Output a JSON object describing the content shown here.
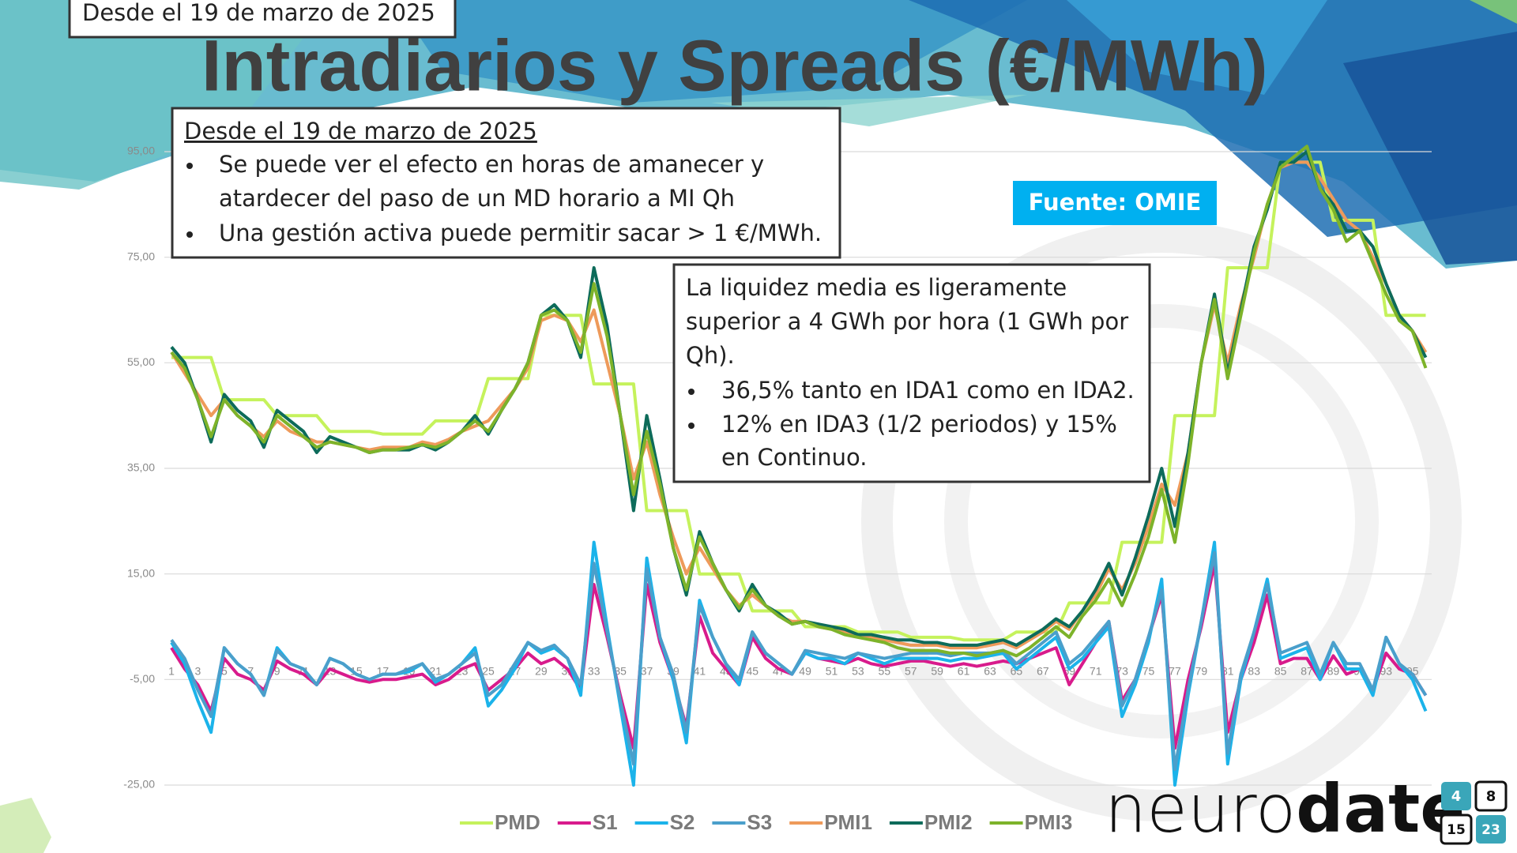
{
  "chart_data": {
    "type": "line",
    "title": "Intradiarios y Spreads (€/MWh)",
    "categories": [
      1,
      null,
      3,
      null,
      5,
      null,
      7,
      null,
      9,
      null,
      11,
      null,
      13,
      null,
      15,
      null,
      17,
      null,
      19,
      null,
      21,
      null,
      23,
      null,
      25,
      null,
      27,
      null,
      29,
      null,
      31,
      null,
      33,
      null,
      35,
      null,
      37,
      null,
      39,
      null,
      41,
      null,
      43,
      null,
      45,
      null,
      47,
      null,
      49,
      null,
      51,
      null,
      53,
      null,
      55,
      null,
      57,
      null,
      59,
      null,
      61,
      null,
      63,
      null,
      65,
      null,
      67,
      null,
      69,
      null,
      71,
      null,
      73,
      null,
      75,
      null,
      77,
      null,
      79,
      null,
      81,
      null,
      83,
      null,
      85,
      null,
      87,
      null,
      89,
      null,
      91,
      null,
      93,
      null,
      95,
      null
    ],
    "ylim": [
      -25,
      95
    ],
    "yticks": [
      {
        "value": -25,
        "label": "-25,00"
      },
      {
        "value": -5,
        "label": "-5,00"
      },
      {
        "value": 15,
        "label": "15,00"
      },
      {
        "value": 35,
        "label": "35,00"
      },
      {
        "value": 55,
        "label": "55,00"
      },
      {
        "value": 75,
        "label": "75,00"
      },
      {
        "value": 95,
        "label": "95,00"
      }
    ],
    "grid": true,
    "legend": "bottom",
    "series": [
      {
        "name": "PMD",
        "color": "#c5f25c",
        "values": [
          56,
          56,
          56,
          56,
          48,
          48,
          48,
          48,
          45,
          45,
          45,
          45,
          42,
          42,
          42,
          42,
          41.5,
          41.5,
          41.5,
          41.5,
          44,
          44,
          44,
          44,
          52,
          52,
          52,
          52,
          64,
          64,
          64,
          64,
          51,
          51,
          51,
          51,
          27,
          27,
          27,
          27,
          15,
          15,
          15,
          15,
          8,
          8,
          8,
          8,
          5,
          5,
          5,
          5,
          4,
          4,
          4,
          4,
          3,
          3,
          3,
          3,
          2.5,
          2.5,
          2.5,
          2.5,
          4,
          4,
          4,
          4,
          9.5,
          9.5,
          9.5,
          9.5,
          21,
          21,
          21,
          21,
          45,
          45,
          45,
          45,
          73,
          73,
          73,
          73,
          93,
          93,
          93,
          93,
          82,
          82,
          82,
          82,
          64,
          64,
          64,
          64
        ]
      },
      {
        "name": "S1",
        "color": "#d81b8c",
        "values": [
          1,
          -3,
          -6,
          -11,
          -1,
          -4,
          -5,
          -7,
          -1.5,
          -3,
          -4,
          -6,
          -3,
          -4,
          -5,
          -5.5,
          -5,
          -5,
          -4.5,
          -4,
          -6,
          -5,
          -3,
          -2,
          -7,
          -5,
          -3,
          0,
          -2,
          -1,
          -3,
          -7,
          13,
          3,
          -8,
          -18,
          13,
          2,
          -5,
          -14,
          7,
          0,
          -3,
          -6,
          3,
          -1,
          -3,
          -4,
          0,
          -1,
          -1.5,
          -2,
          -1,
          -2,
          -2.5,
          -2,
          -1.5,
          -1.5,
          -2,
          -2.5,
          -2,
          -2.5,
          -2,
          -1.5,
          -2,
          -1,
          0,
          1,
          -6,
          -2,
          2,
          6,
          -9,
          -5,
          3,
          11,
          -18,
          -5,
          5,
          17,
          -15,
          -5,
          2,
          11,
          -2,
          -1,
          -1,
          -5,
          -0.5,
          -4,
          -3,
          -7,
          0,
          -3,
          -4,
          -8
        ]
      },
      {
        "name": "S2",
        "color": "#1bb3ea",
        "values": [
          2,
          -2,
          -9,
          -15,
          1,
          -2,
          -4,
          -8,
          1,
          -2,
          -3,
          -6,
          -1,
          -2,
          -4,
          -5,
          -4,
          -4,
          -3.5,
          -2,
          -5.5,
          -4,
          -2,
          1,
          -10,
          -7,
          -3,
          2,
          0,
          1,
          -1,
          -8,
          21,
          5,
          -10,
          -25,
          18,
          3,
          -5,
          -17,
          10,
          3,
          -2,
          -6,
          4,
          0,
          -2,
          -4,
          0,
          -1,
          -1,
          -2,
          0,
          -1,
          -2,
          -1,
          -1,
          -1,
          -1,
          -1.5,
          -1,
          -1,
          -0.5,
          0,
          -3,
          -1,
          1,
          3,
          -3,
          -1,
          2,
          5,
          -12,
          -6,
          2,
          14,
          -25,
          -8,
          6,
          21,
          -21,
          -5,
          4,
          14,
          -1,
          0,
          1,
          -5,
          2,
          -3,
          -3,
          -8,
          3,
          -2,
          -5,
          -11
        ]
      },
      {
        "name": "S3",
        "color": "#4a9fcb",
        "values": [
          2.5,
          -1,
          -7,
          -12,
          1,
          -2,
          -4,
          -8,
          0.5,
          -2,
          -3,
          -6,
          -1,
          -2,
          -4,
          -5,
          -4,
          -4,
          -3,
          -2,
          -5,
          -4,
          -2,
          0,
          -8,
          -6,
          -2,
          2,
          0.5,
          1.5,
          -1,
          -6,
          17,
          4,
          -9,
          -21,
          16,
          3,
          -4,
          -15,
          9,
          3,
          -2,
          -5,
          4,
          0,
          -2,
          -4,
          0.5,
          0,
          -0.5,
          -1,
          0,
          -0.5,
          -1,
          -0.5,
          0,
          0,
          0,
          -0.5,
          0,
          0,
          0,
          0.5,
          -2,
          0,
          2,
          4,
          -2,
          0,
          3,
          6,
          -10,
          -5,
          3,
          12,
          -22,
          -7,
          6,
          19,
          -19,
          -4,
          4,
          13,
          0,
          1,
          2,
          -4,
          2,
          -2,
          -2,
          -7,
          3,
          -2,
          -4,
          -8
        ]
      },
      {
        "name": "PMI1",
        "color": "#ee9a5a",
        "values": [
          57,
          53,
          49,
          45,
          48,
          45,
          43,
          41,
          44,
          42,
          41,
          40,
          40,
          39.5,
          39,
          38.5,
          39,
          39,
          39,
          40,
          39.5,
          40.5,
          42,
          43,
          44,
          47,
          50,
          54,
          63,
          64,
          63,
          59,
          65,
          55,
          45,
          33,
          40,
          30,
          22,
          15,
          20,
          16,
          12,
          9,
          11,
          9,
          7,
          6,
          6,
          5,
          4.5,
          4,
          3.5,
          3,
          2.5,
          2,
          1.5,
          1.5,
          1.5,
          1,
          1,
          1,
          1.5,
          2,
          1,
          2.5,
          4,
          6,
          4.5,
          8,
          11,
          16,
          12,
          17,
          24,
          32,
          28,
          38,
          55,
          66,
          55,
          66,
          75,
          85,
          92,
          93,
          93,
          90,
          86,
          82,
          80,
          75,
          70,
          64,
          61,
          57
        ]
      },
      {
        "name": "PMI2",
        "color": "#0d6b5a",
        "values": [
          58,
          55,
          48,
          40,
          49,
          46,
          44,
          39,
          46,
          44,
          42,
          38,
          41,
          40,
          39,
          38,
          38.5,
          38.5,
          38.5,
          39.5,
          38.5,
          40,
          42,
          45,
          41.5,
          46,
          50,
          55,
          64,
          66,
          63,
          56,
          73,
          62,
          45,
          27,
          45,
          33,
          20,
          11,
          23,
          17,
          12,
          8,
          13,
          9,
          7.5,
          5.5,
          6,
          5.5,
          5,
          4.5,
          3.5,
          3.5,
          3,
          2.5,
          2.5,
          2,
          2,
          1.5,
          1.5,
          1.5,
          2,
          2.5,
          1.5,
          3,
          4.5,
          6.5,
          5,
          8,
          12,
          17,
          11,
          18,
          26,
          35,
          24,
          38,
          55,
          68,
          53,
          65,
          77,
          84,
          93,
          93,
          95,
          88,
          85,
          80,
          80,
          77,
          70,
          64,
          61,
          56
        ]
      },
      {
        "name": "PMI3",
        "color": "#7db32a",
        "values": [
          57,
          54,
          48,
          41,
          48,
          45,
          43,
          40,
          45,
          43,
          41,
          39,
          40,
          39.5,
          39,
          38,
          38.5,
          38.5,
          39,
          39.5,
          39,
          40,
          42,
          44,
          42,
          46,
          50,
          55,
          64,
          65,
          63,
          57,
          70,
          60,
          45,
          30,
          42,
          32,
          20,
          12,
          22,
          17,
          12,
          8.5,
          12,
          9,
          7,
          5.5,
          6,
          5,
          4.5,
          3.5,
          3,
          2.5,
          2,
          1,
          0.5,
          0.5,
          0.5,
          0,
          0,
          -0.5,
          0,
          0.5,
          -0.5,
          1,
          3,
          5,
          3,
          7,
          10,
          14,
          9,
          15,
          22,
          31,
          21,
          36,
          55,
          67,
          52,
          64,
          76,
          85,
          92,
          94,
          96,
          88,
          84,
          78,
          80,
          74,
          68,
          63,
          61,
          54
        ]
      }
    ]
  },
  "slide": {
    "tag": "Desde el 19 de marzo de 2025",
    "box1": {
      "heading": "Desde el 19 de marzo de 2025",
      "bullets": [
        [
          "Se puede ver el efecto en horas de amanecer y",
          "atardecer del paso de un MD horario a MI Qh"
        ],
        [
          "Una gestión activa puede permitir sacar > 1 €/MWh."
        ]
      ]
    },
    "source": "Fuente: OMIE",
    "box2": {
      "lines": [
        "La liquidez media es ligeramente",
        "superior a 4 GWh por hora (1 GWh por",
        "Qh)."
      ],
      "bullets": [
        [
          "36,5% tanto en IDA1 como en IDA2."
        ],
        [
          "12% en IDA3 (1/2 periodos) y 15%",
          "en Continuo."
        ]
      ]
    },
    "logo": {
      "light": "neuro",
      "bold": "date",
      "tiles": [
        "4",
        "8",
        "15",
        "23"
      ]
    }
  }
}
